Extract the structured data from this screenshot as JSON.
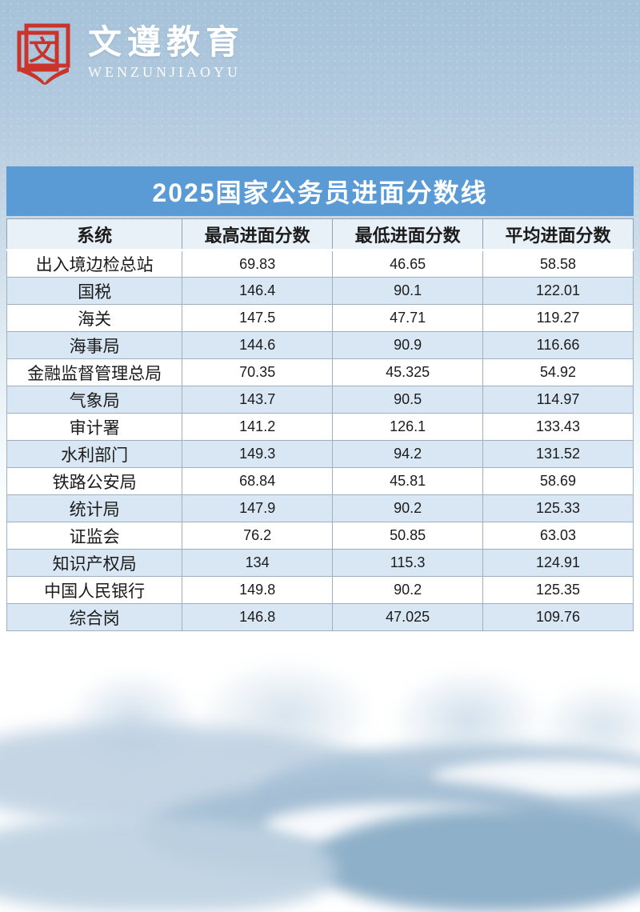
{
  "brand": {
    "logo_glyph": "文",
    "name": "文遵教育",
    "tagline": "WENZUNJIAOYU"
  },
  "colors": {
    "title_bar_blue": "#5b9bd5",
    "header_row_bg": "#e9f1f8",
    "stripe_row_bg": "#d8e7f3",
    "logo_red": "#c9342b",
    "background_top_blue": "#a6c2d9"
  },
  "chart_data": {
    "type": "table",
    "title": "2025国家公务员进面分数线",
    "columns": [
      "系统",
      "最高进面分数",
      "最低进面分数",
      "平均进面分数"
    ],
    "rows": [
      [
        "出入境边检总站",
        "69.83",
        "46.65",
        "58.58"
      ],
      [
        "国税",
        "146.4",
        "90.1",
        "122.01"
      ],
      [
        "海关",
        "147.5",
        "47.71",
        "119.27"
      ],
      [
        "海事局",
        "144.6",
        "90.9",
        "116.66"
      ],
      [
        "金融监督管理总局",
        "70.35",
        "45.325",
        "54.92"
      ],
      [
        "气象局",
        "143.7",
        "90.5",
        "114.97"
      ],
      [
        "审计署",
        "141.2",
        "126.1",
        "133.43"
      ],
      [
        "水利部门",
        "149.3",
        "94.2",
        "131.52"
      ],
      [
        "铁路公安局",
        "68.84",
        "45.81",
        "58.69"
      ],
      [
        "统计局",
        "147.9",
        "90.2",
        "125.33"
      ],
      [
        "证监会",
        "76.2",
        "50.85",
        "63.03"
      ],
      [
        "知识产权局",
        "134",
        "115.3",
        "124.91"
      ],
      [
        "中国人民银行",
        "149.8",
        "90.2",
        "125.35"
      ],
      [
        "综合岗",
        "146.8",
        "47.025",
        "109.76"
      ]
    ]
  }
}
